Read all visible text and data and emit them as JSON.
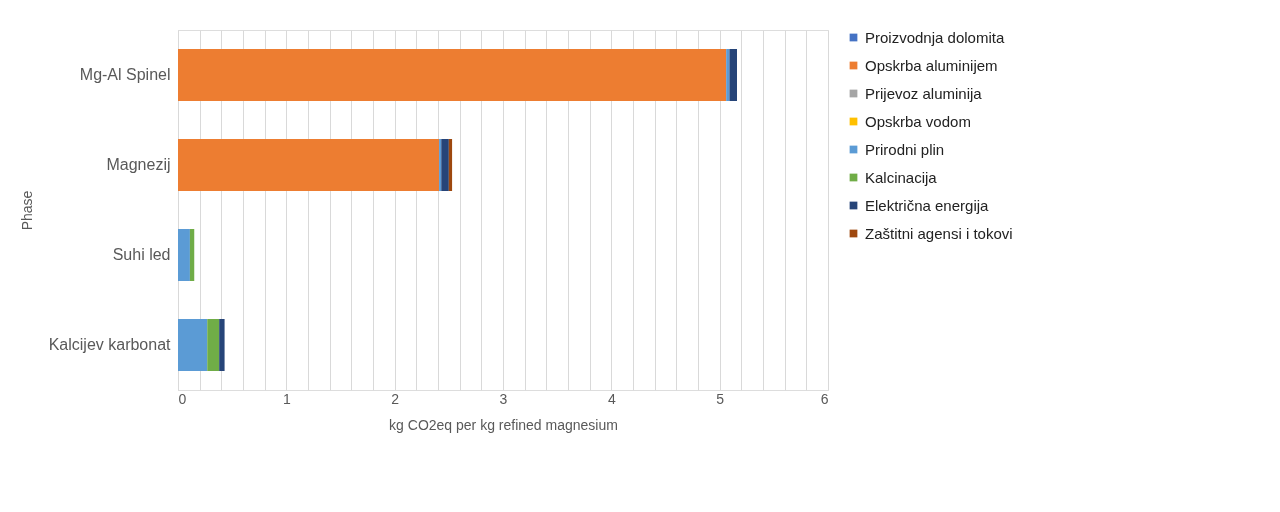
{
  "chart_data": {
    "type": "bar",
    "orientation": "horizontal",
    "stacked": true,
    "categories": [
      "Mg-Al Spinel",
      "Magnezij",
      "Suhi led",
      "Kalcijev karbonat"
    ],
    "series": [
      {
        "name": "Proizvodnja dolomita",
        "color": "#4472c4",
        "values": [
          0,
          0,
          0,
          0
        ]
      },
      {
        "name": "Opskrba aluminijem",
        "color": "#ed7d31",
        "values": [
          5.06,
          2.41,
          0,
          0
        ]
      },
      {
        "name": "Prijevoz aluminija",
        "color": "#a5a5a5",
        "values": [
          0,
          0,
          0,
          0
        ]
      },
      {
        "name": "Opskrba vodom",
        "color": "#ffc000",
        "values": [
          0,
          0,
          0,
          0
        ]
      },
      {
        "name": "Prirodni plin",
        "color": "#5b9bd5",
        "values": [
          0.03,
          0.02,
          0.11,
          0.27
        ]
      },
      {
        "name": "Kalcinacija",
        "color": "#70ad47",
        "values": [
          0,
          0,
          0.04,
          0.11
        ]
      },
      {
        "name": "Električna energija",
        "color": "#264478",
        "values": [
          0.07,
          0.07,
          0,
          0.05
        ]
      },
      {
        "name": "Zaštitni agensi i tokovi",
        "color": "#9e480e",
        "values": [
          0,
          0.03,
          0,
          0
        ]
      }
    ],
    "xlabel": "kg CO2eq per kg refined magnesium",
    "ylabel": "Phase",
    "xlim": [
      0,
      6
    ],
    "xticks": [
      0,
      {
        "value": 0.2,
        "label": null
      },
      {
        "value": 0.4,
        "label": null
      },
      {
        "value": 0.6,
        "label": null
      },
      {
        "value": 0.8,
        "label": null
      },
      1,
      {
        "value": 1.2,
        "label": null
      },
      {
        "value": 1.4,
        "label": null
      },
      {
        "value": 1.6,
        "label": null
      },
      {
        "value": 1.8,
        "label": null
      },
      2,
      {
        "value": 2.2,
        "label": null
      },
      {
        "value": 2.4,
        "label": null
      },
      {
        "value": 2.6,
        "label": null
      },
      {
        "value": 2.8,
        "label": null
      },
      3,
      {
        "value": 3.2,
        "label": null
      },
      {
        "value": 3.4,
        "label": null
      },
      {
        "value": 3.6,
        "label": null
      },
      {
        "value": 3.8,
        "label": null
      },
      4,
      {
        "value": 4.2,
        "label": null
      },
      {
        "value": 4.4,
        "label": null
      },
      {
        "value": 4.6,
        "label": null
      },
      {
        "value": 4.8,
        "label": null
      },
      5,
      {
        "value": 5.2,
        "label": null
      },
      {
        "value": 5.4,
        "label": null
      },
      {
        "value": 5.6,
        "label": null
      },
      {
        "value": 5.8,
        "label": null
      },
      6
    ],
    "grid": "x",
    "legend": "right"
  }
}
